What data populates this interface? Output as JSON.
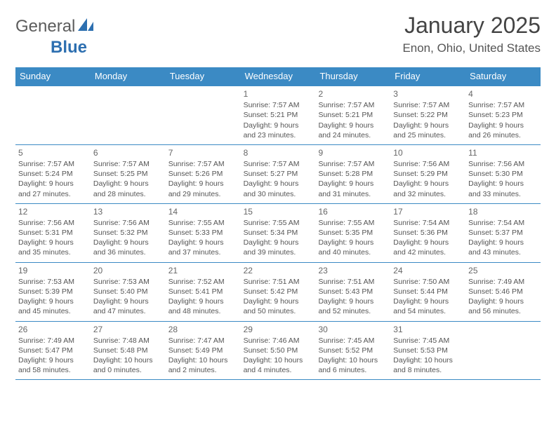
{
  "logo": {
    "word1": "General",
    "word2": "Blue"
  },
  "title": "January 2025",
  "location": "Enon, Ohio, United States",
  "colors": {
    "header_bg": "#3b8ac4",
    "header_text": "#ffffff",
    "rule": "#3b8ac4",
    "body_text": "#555555",
    "title_text": "#444444",
    "logo_gray": "#5c5c5c",
    "logo_blue": "#2d6fb0",
    "background": "#ffffff"
  },
  "day_labels": [
    "Sunday",
    "Monday",
    "Tuesday",
    "Wednesday",
    "Thursday",
    "Friday",
    "Saturday"
  ],
  "weeks": [
    [
      null,
      null,
      null,
      {
        "n": "1",
        "sr": "Sunrise: 7:57 AM",
        "ss": "Sunset: 5:21 PM",
        "d1": "Daylight: 9 hours",
        "d2": "and 23 minutes."
      },
      {
        "n": "2",
        "sr": "Sunrise: 7:57 AM",
        "ss": "Sunset: 5:21 PM",
        "d1": "Daylight: 9 hours",
        "d2": "and 24 minutes."
      },
      {
        "n": "3",
        "sr": "Sunrise: 7:57 AM",
        "ss": "Sunset: 5:22 PM",
        "d1": "Daylight: 9 hours",
        "d2": "and 25 minutes."
      },
      {
        "n": "4",
        "sr": "Sunrise: 7:57 AM",
        "ss": "Sunset: 5:23 PM",
        "d1": "Daylight: 9 hours",
        "d2": "and 26 minutes."
      }
    ],
    [
      {
        "n": "5",
        "sr": "Sunrise: 7:57 AM",
        "ss": "Sunset: 5:24 PM",
        "d1": "Daylight: 9 hours",
        "d2": "and 27 minutes."
      },
      {
        "n": "6",
        "sr": "Sunrise: 7:57 AM",
        "ss": "Sunset: 5:25 PM",
        "d1": "Daylight: 9 hours",
        "d2": "and 28 minutes."
      },
      {
        "n": "7",
        "sr": "Sunrise: 7:57 AM",
        "ss": "Sunset: 5:26 PM",
        "d1": "Daylight: 9 hours",
        "d2": "and 29 minutes."
      },
      {
        "n": "8",
        "sr": "Sunrise: 7:57 AM",
        "ss": "Sunset: 5:27 PM",
        "d1": "Daylight: 9 hours",
        "d2": "and 30 minutes."
      },
      {
        "n": "9",
        "sr": "Sunrise: 7:57 AM",
        "ss": "Sunset: 5:28 PM",
        "d1": "Daylight: 9 hours",
        "d2": "and 31 minutes."
      },
      {
        "n": "10",
        "sr": "Sunrise: 7:56 AM",
        "ss": "Sunset: 5:29 PM",
        "d1": "Daylight: 9 hours",
        "d2": "and 32 minutes."
      },
      {
        "n": "11",
        "sr": "Sunrise: 7:56 AM",
        "ss": "Sunset: 5:30 PM",
        "d1": "Daylight: 9 hours",
        "d2": "and 33 minutes."
      }
    ],
    [
      {
        "n": "12",
        "sr": "Sunrise: 7:56 AM",
        "ss": "Sunset: 5:31 PM",
        "d1": "Daylight: 9 hours",
        "d2": "and 35 minutes."
      },
      {
        "n": "13",
        "sr": "Sunrise: 7:56 AM",
        "ss": "Sunset: 5:32 PM",
        "d1": "Daylight: 9 hours",
        "d2": "and 36 minutes."
      },
      {
        "n": "14",
        "sr": "Sunrise: 7:55 AM",
        "ss": "Sunset: 5:33 PM",
        "d1": "Daylight: 9 hours",
        "d2": "and 37 minutes."
      },
      {
        "n": "15",
        "sr": "Sunrise: 7:55 AM",
        "ss": "Sunset: 5:34 PM",
        "d1": "Daylight: 9 hours",
        "d2": "and 39 minutes."
      },
      {
        "n": "16",
        "sr": "Sunrise: 7:55 AM",
        "ss": "Sunset: 5:35 PM",
        "d1": "Daylight: 9 hours",
        "d2": "and 40 minutes."
      },
      {
        "n": "17",
        "sr": "Sunrise: 7:54 AM",
        "ss": "Sunset: 5:36 PM",
        "d1": "Daylight: 9 hours",
        "d2": "and 42 minutes."
      },
      {
        "n": "18",
        "sr": "Sunrise: 7:54 AM",
        "ss": "Sunset: 5:37 PM",
        "d1": "Daylight: 9 hours",
        "d2": "and 43 minutes."
      }
    ],
    [
      {
        "n": "19",
        "sr": "Sunrise: 7:53 AM",
        "ss": "Sunset: 5:39 PM",
        "d1": "Daylight: 9 hours",
        "d2": "and 45 minutes."
      },
      {
        "n": "20",
        "sr": "Sunrise: 7:53 AM",
        "ss": "Sunset: 5:40 PM",
        "d1": "Daylight: 9 hours",
        "d2": "and 47 minutes."
      },
      {
        "n": "21",
        "sr": "Sunrise: 7:52 AM",
        "ss": "Sunset: 5:41 PM",
        "d1": "Daylight: 9 hours",
        "d2": "and 48 minutes."
      },
      {
        "n": "22",
        "sr": "Sunrise: 7:51 AM",
        "ss": "Sunset: 5:42 PM",
        "d1": "Daylight: 9 hours",
        "d2": "and 50 minutes."
      },
      {
        "n": "23",
        "sr": "Sunrise: 7:51 AM",
        "ss": "Sunset: 5:43 PM",
        "d1": "Daylight: 9 hours",
        "d2": "and 52 minutes."
      },
      {
        "n": "24",
        "sr": "Sunrise: 7:50 AM",
        "ss": "Sunset: 5:44 PM",
        "d1": "Daylight: 9 hours",
        "d2": "and 54 minutes."
      },
      {
        "n": "25",
        "sr": "Sunrise: 7:49 AM",
        "ss": "Sunset: 5:46 PM",
        "d1": "Daylight: 9 hours",
        "d2": "and 56 minutes."
      }
    ],
    [
      {
        "n": "26",
        "sr": "Sunrise: 7:49 AM",
        "ss": "Sunset: 5:47 PM",
        "d1": "Daylight: 9 hours",
        "d2": "and 58 minutes."
      },
      {
        "n": "27",
        "sr": "Sunrise: 7:48 AM",
        "ss": "Sunset: 5:48 PM",
        "d1": "Daylight: 10 hours",
        "d2": "and 0 minutes."
      },
      {
        "n": "28",
        "sr": "Sunrise: 7:47 AM",
        "ss": "Sunset: 5:49 PM",
        "d1": "Daylight: 10 hours",
        "d2": "and 2 minutes."
      },
      {
        "n": "29",
        "sr": "Sunrise: 7:46 AM",
        "ss": "Sunset: 5:50 PM",
        "d1": "Daylight: 10 hours",
        "d2": "and 4 minutes."
      },
      {
        "n": "30",
        "sr": "Sunrise: 7:45 AM",
        "ss": "Sunset: 5:52 PM",
        "d1": "Daylight: 10 hours",
        "d2": "and 6 minutes."
      },
      {
        "n": "31",
        "sr": "Sunrise: 7:45 AM",
        "ss": "Sunset: 5:53 PM",
        "d1": "Daylight: 10 hours",
        "d2": "and 8 minutes."
      },
      null
    ]
  ]
}
